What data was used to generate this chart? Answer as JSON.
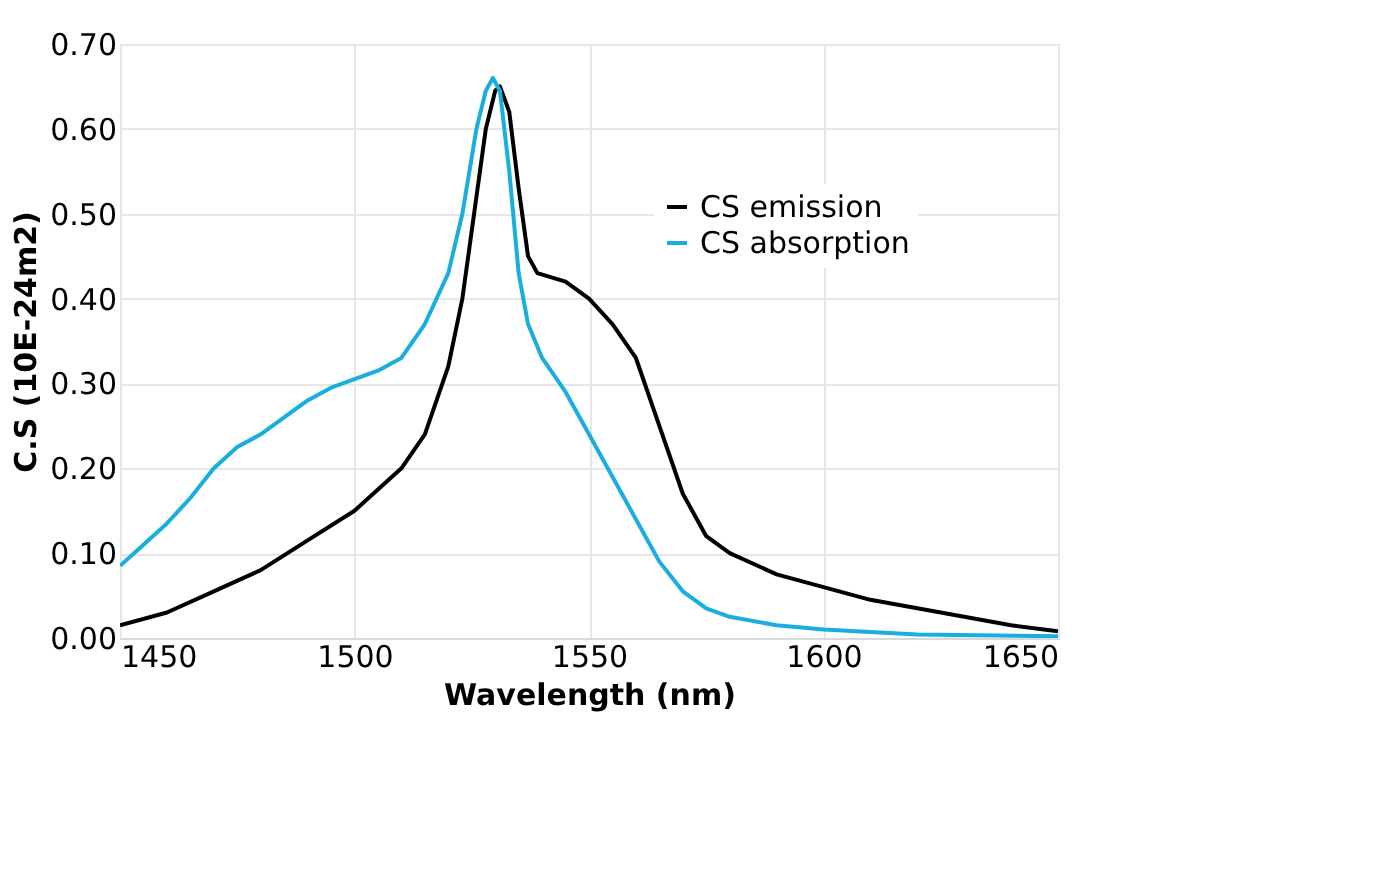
{
  "chart_data": {
    "type": "line",
    "xlabel": "Wavelength (nm)",
    "ylabel": "C.S (10E-24m2)",
    "xlim": [
      1450,
      1650
    ],
    "xticks": [
      1450,
      1500,
      1550,
      1600,
      1650
    ],
    "ylim": [
      0,
      0.7
    ],
    "yticks": [
      {
        "value": 0,
        "label": "0.00"
      },
      {
        "value": 0.1,
        "label": "0.10"
      },
      {
        "value": 0.2,
        "label": "0.20"
      },
      {
        "value": 0.3,
        "label": "0.30"
      },
      {
        "value": 0.4,
        "label": "0.40"
      },
      {
        "value": 0.5,
        "label": "0.50"
      },
      {
        "value": 0.6,
        "label": "0.60"
      },
      {
        "value": 0.7,
        "label": "0.70"
      }
    ],
    "grid": true,
    "legend": "top right",
    "marker": "none",
    "line_style": "solid",
    "series": [
      {
        "name": "CS emission",
        "color": "#000000",
        "x": [
          1450,
          1460,
          1470,
          1480,
          1490,
          1500,
          1510,
          1515,
          1520,
          1523,
          1526,
          1528,
          1530,
          1531,
          1533,
          1535,
          1537,
          1539,
          1545,
          1550,
          1555,
          1560,
          1565,
          1570,
          1575,
          1580,
          1590,
          1600,
          1610,
          1620,
          1630,
          1640,
          1650
        ],
        "values": [
          0.015,
          0.03,
          0.055,
          0.08,
          0.115,
          0.15,
          0.2,
          0.24,
          0.32,
          0.4,
          0.52,
          0.6,
          0.645,
          0.65,
          0.62,
          0.53,
          0.45,
          0.43,
          0.42,
          0.4,
          0.37,
          0.33,
          0.25,
          0.17,
          0.12,
          0.1,
          0.075,
          0.06,
          0.045,
          0.035,
          0.025,
          0.015,
          0.008
        ]
      },
      {
        "name": "CS absorption",
        "color": "#1aaede",
        "x": [
          1450,
          1455,
          1460,
          1465,
          1470,
          1475,
          1480,
          1485,
          1490,
          1495,
          1500,
          1505,
          1510,
          1515,
          1520,
          1523,
          1526,
          1528,
          1529.5,
          1531,
          1533,
          1535,
          1537,
          1540,
          1545,
          1550,
          1555,
          1560,
          1565,
          1570,
          1575,
          1580,
          1590,
          1600,
          1620,
          1650
        ],
        "values": [
          0.085,
          0.11,
          0.135,
          0.165,
          0.2,
          0.225,
          0.24,
          0.26,
          0.28,
          0.295,
          0.305,
          0.315,
          0.33,
          0.37,
          0.43,
          0.5,
          0.6,
          0.645,
          0.66,
          0.645,
          0.55,
          0.43,
          0.37,
          0.33,
          0.29,
          0.24,
          0.19,
          0.14,
          0.09,
          0.055,
          0.035,
          0.025,
          0.015,
          0.01,
          0.004,
          0.002
        ]
      }
    ]
  }
}
